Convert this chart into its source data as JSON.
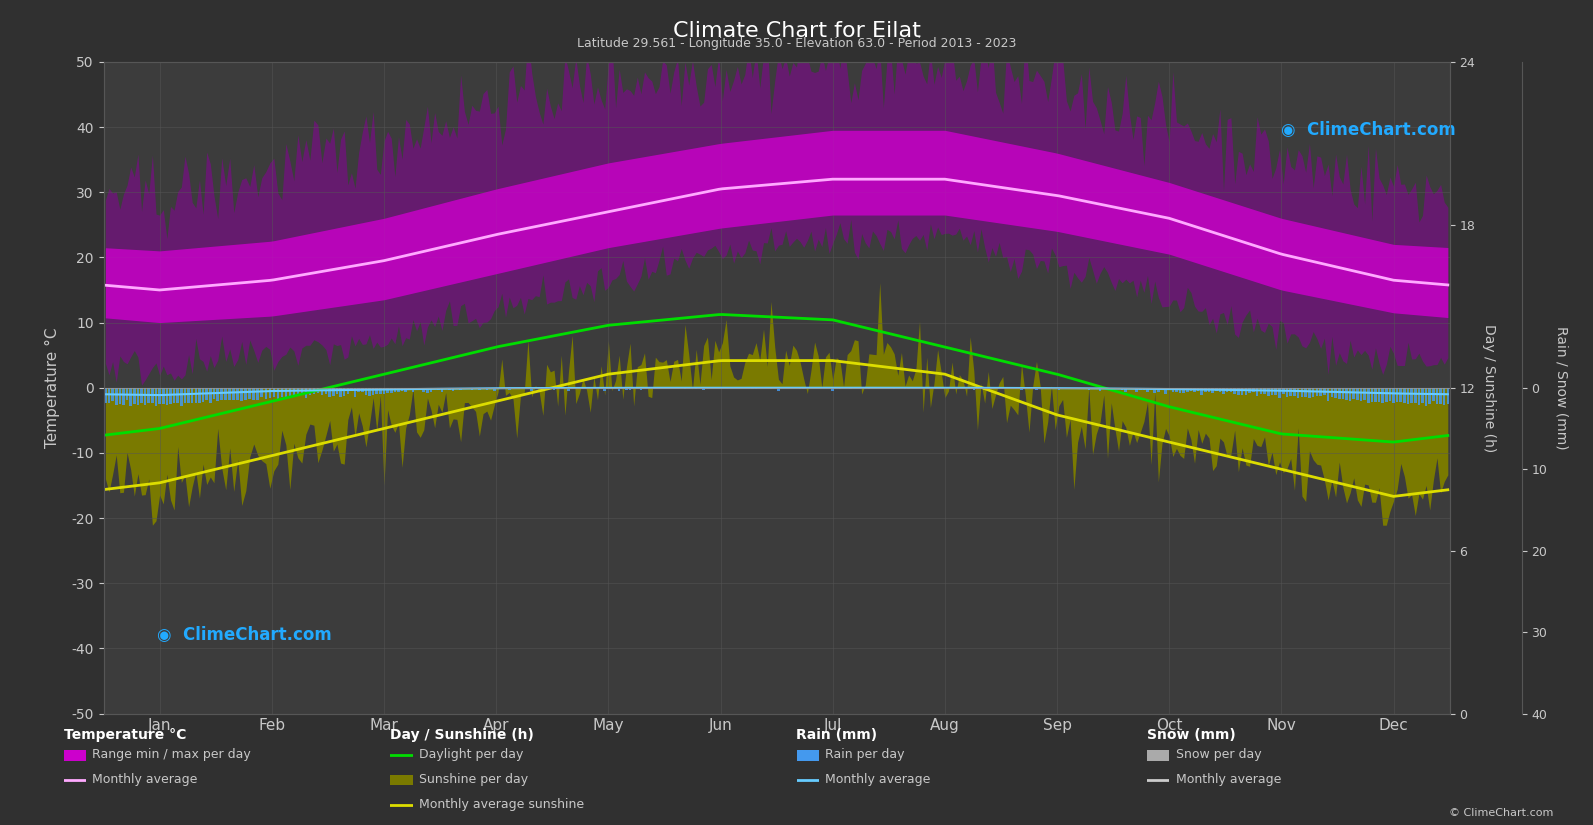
{
  "title": "Climate Chart for Eilat",
  "subtitle": "Latitude 29.561 - Longitude 35.0 - Elevation 63.0 - Period 2013 - 2023",
  "bg_color": "#303030",
  "plot_bg": "#3c3c3c",
  "grid_color": "#565656",
  "text_color": "#c8c8c8",
  "months": [
    "Jan",
    "Feb",
    "Mar",
    "Apr",
    "May",
    "Jun",
    "Jul",
    "Aug",
    "Sep",
    "Oct",
    "Nov",
    "Dec"
  ],
  "days_per_month": [
    31,
    28,
    31,
    30,
    31,
    30,
    31,
    31,
    30,
    31,
    30,
    31
  ],
  "temp_avg": [
    15.0,
    16.5,
    19.5,
    23.5,
    27.0,
    30.5,
    32.0,
    32.0,
    29.5,
    26.0,
    20.5,
    16.5
  ],
  "temp_max_avg": [
    21.0,
    22.5,
    26.0,
    30.5,
    34.5,
    37.5,
    39.5,
    39.5,
    36.0,
    31.5,
    26.0,
    22.0
  ],
  "temp_min_avg": [
    10.0,
    11.0,
    13.5,
    17.5,
    21.5,
    24.5,
    26.5,
    26.5,
    24.0,
    20.5,
    15.0,
    11.5
  ],
  "temp_abs_max": [
    29.0,
    33.0,
    38.0,
    44.0,
    47.0,
    49.0,
    50.0,
    49.0,
    46.0,
    41.0,
    35.0,
    31.0
  ],
  "temp_abs_min": [
    3.0,
    5.0,
    7.0,
    12.0,
    16.0,
    20.0,
    23.0,
    23.0,
    19.0,
    13.0,
    8.0,
    4.0
  ],
  "daylight": [
    10.5,
    11.5,
    12.5,
    13.5,
    14.3,
    14.7,
    14.5,
    13.5,
    12.5,
    11.3,
    10.3,
    10.0
  ],
  "sunshine_avg": [
    8.5,
    9.5,
    10.5,
    11.5,
    12.5,
    13.0,
    13.0,
    12.5,
    11.0,
    10.0,
    9.0,
    8.0
  ],
  "rain_per_day": [
    2.0,
    1.2,
    0.6,
    0.15,
    0.02,
    0.0,
    0.0,
    0.0,
    0.1,
    0.4,
    0.9,
    1.8
  ],
  "rain_avg": [
    0.9,
    0.4,
    0.2,
    0.05,
    0.01,
    0.0,
    0.0,
    0.0,
    0.04,
    0.15,
    0.35,
    0.7
  ],
  "col_bg_fill": "#aa00aa",
  "col_mag_fill": "#cc00cc",
  "col_temp_line": "#ffaaff",
  "col_green": "#00dd00",
  "col_yellow": "#dddd00",
  "col_olive": "#7a7a00",
  "col_rain_bar": "#4499ee",
  "col_rain_line": "#66ccff",
  "col_snow_bar": "#aaaaaa",
  "col_snow_line": "#cccccc",
  "col_watermark": "#22aaff",
  "watermark": "ClimeChart.com",
  "copyright": "© ClimeChart.com",
  "temp_ylim": [
    -50,
    50
  ],
  "sun_max": 24,
  "rain_max": 40,
  "legend_col1_header": "Temperature °C",
  "legend_col2_header": "Day / Sunshine (h)",
  "legend_col3_header": "Rain (mm)",
  "legend_col4_header": "Snow (mm)"
}
